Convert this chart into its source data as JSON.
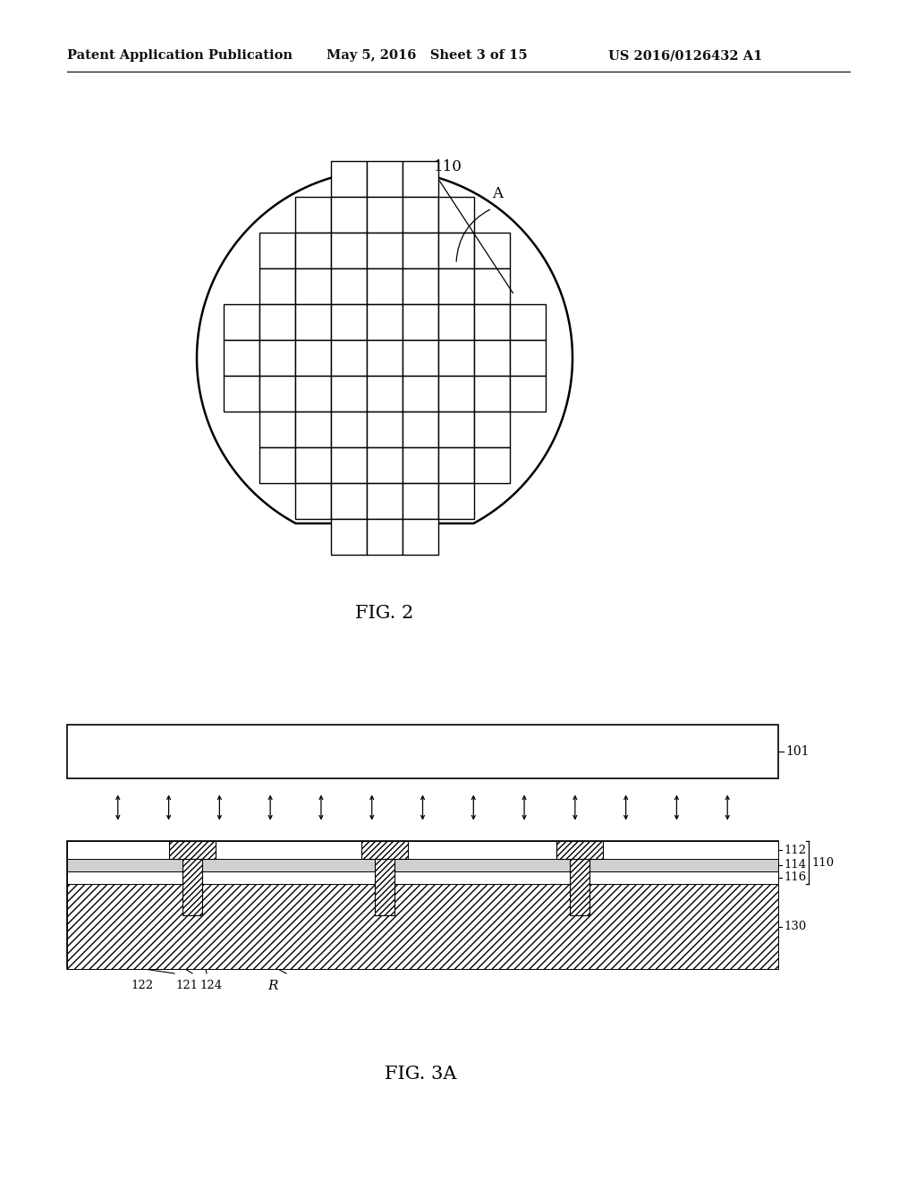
{
  "background_color": "#ffffff",
  "header_left": "Patent Application Publication",
  "header_mid": "May 5, 2016   Sheet 3 of 15",
  "header_right": "US 2016/0126432 A1",
  "fig2_label": "FIG. 2",
  "fig3a_label": "FIG. 3A",
  "label_110": "110",
  "label_A": "A",
  "label_101": "101",
  "label_112": "112",
  "label_114": "114",
  "label_110b": "110",
  "label_116": "116",
  "label_130": "130",
  "label_122": "122",
  "label_121": "121",
  "label_124": "124",
  "label_R": "R"
}
